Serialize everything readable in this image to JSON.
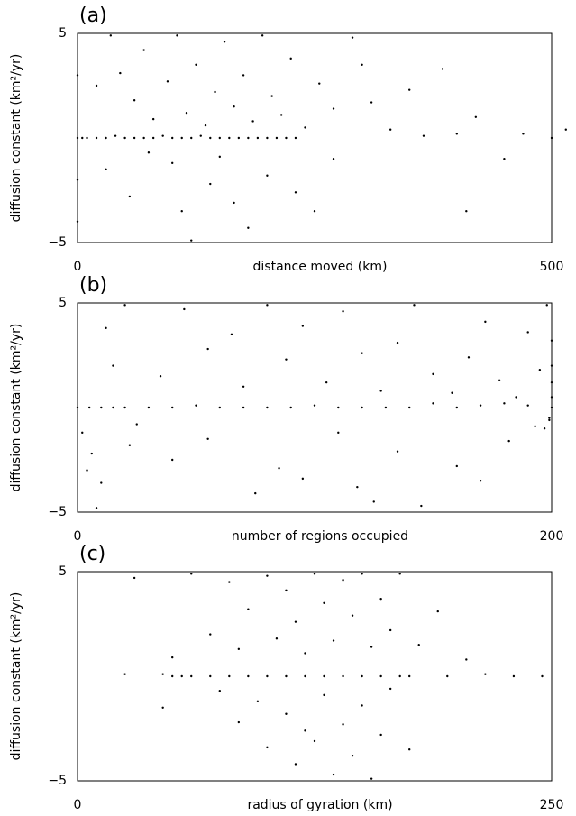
{
  "chart_data": [
    {
      "type": "scatter",
      "label": "(a)",
      "x_label": "distance moved (km)",
      "y_label": "diffusion constant (km²/yr)",
      "color": "#000000",
      "xlim": [
        0,
        500
      ],
      "xticks": [
        0,
        500
      ],
      "ylim": [
        -5,
        5
      ],
      "yticks": [
        {
          "value": -5,
          "label": "−5"
        },
        5
      ],
      "x": [
        0,
        5,
        10,
        20,
        30,
        40,
        50,
        60,
        70,
        80,
        90,
        100,
        110,
        120,
        130,
        140,
        150,
        160,
        170,
        180,
        190,
        200,
        210,
        220,
        230,
        20,
        35,
        45,
        60,
        70,
        80,
        95,
        105,
        115,
        125,
        135,
        145,
        155,
        165,
        175,
        185,
        195,
        205,
        215,
        225,
        240,
        255,
        270,
        290,
        310,
        330,
        350,
        365,
        385,
        400,
        420,
        450,
        410,
        300,
        30,
        55,
        75,
        100,
        110,
        120,
        140,
        150,
        165,
        180,
        200,
        230,
        250,
        0,
        0,
        0,
        270,
        470,
        500,
        515
      ],
      "y": [
        0,
        0,
        0,
        0,
        0,
        0.1,
        0,
        0,
        0,
        0,
        0.1,
        0,
        0,
        0,
        0.1,
        0,
        0,
        0,
        0,
        0,
        0,
        0,
        0,
        0,
        0,
        2.5,
        4.9,
        3.1,
        1.8,
        4.2,
        0.9,
        2.7,
        4.9,
        1.2,
        3.5,
        0.6,
        2.2,
        4.6,
        1.5,
        3.0,
        0.8,
        4.9,
        2.0,
        1.1,
        3.8,
        0.5,
        2.6,
        1.4,
        4.8,
        1.7,
        0.4,
        2.3,
        0.1,
        3.3,
        0.2,
        1.0,
        -1.0,
        -3.5,
        3.5,
        -1.5,
        -2.8,
        -0.7,
        -1.2,
        -3.5,
        -4.9,
        -2.2,
        -0.9,
        -3.1,
        -4.3,
        -1.8,
        -2.6,
        -3.5,
        -2,
        -4,
        3,
        -1.0,
        0.2,
        0,
        0.4
      ]
    },
    {
      "type": "scatter",
      "label": "(b)",
      "x_label": "number of regions occupied",
      "y_label": "diffusion constant (km²/yr)",
      "color": "#000000",
      "xlim": [
        0,
        200
      ],
      "xticks": [
        0,
        200
      ],
      "ylim": [
        -5,
        5
      ],
      "yticks": [
        {
          "value": -5,
          "label": "−5"
        },
        5
      ],
      "x": [
        0,
        5,
        10,
        15,
        20,
        30,
        40,
        50,
        60,
        70,
        80,
        90,
        100,
        110,
        120,
        130,
        140,
        150,
        160,
        170,
        180,
        190,
        200,
        200,
        200,
        200,
        200,
        12,
        15,
        20,
        22,
        35,
        45,
        55,
        65,
        70,
        80,
        88,
        95,
        105,
        112,
        120,
        128,
        135,
        142,
        150,
        158,
        165,
        172,
        178,
        185,
        190,
        195,
        198,
        2,
        4,
        6,
        8,
        10,
        25,
        40,
        55,
        75,
        85,
        95,
        110,
        118,
        125,
        135,
        145,
        160,
        170,
        182,
        193,
        199,
        199,
        197
      ],
      "y": [
        0,
        0,
        0,
        0,
        0,
        0,
        0,
        0.1,
        0,
        0,
        0,
        0,
        0.1,
        0,
        0,
        0,
        0,
        0.2,
        0,
        0.1,
        0.2,
        0.1,
        0,
        0.5,
        1.2,
        2.0,
        3.2,
        3.8,
        2.0,
        4.9,
        -1.8,
        1.5,
        4.7,
        2.8,
        3.5,
        1.0,
        4.9,
        2.3,
        3.9,
        1.2,
        4.6,
        2.6,
        0.8,
        3.1,
        4.9,
        1.6,
        0.7,
        2.4,
        4.1,
        1.3,
        0.5,
        3.6,
        1.8,
        4.9,
        -1.2,
        -3.0,
        -2.2,
        -4.8,
        -3.6,
        -0.8,
        -2.5,
        -1.5,
        -4.1,
        -2.9,
        -3.4,
        -1.2,
        -3.8,
        -4.5,
        -2.1,
        -4.7,
        -2.8,
        -3.5,
        -1.6,
        -0.9,
        -0.5,
        -0.6,
        -1.0
      ]
    },
    {
      "type": "scatter",
      "label": "(c)",
      "x_label": "radius of gyration (km)",
      "y_label": "diffusion constant (km²/yr)",
      "color": "#000000",
      "xlim": [
        0,
        250
      ],
      "xticks": [
        0,
        250
      ],
      "ylim": [
        -5,
        5
      ],
      "yticks": [
        {
          "value": -5,
          "label": "−5"
        },
        5
      ],
      "x": [
        25,
        45,
        50,
        55,
        60,
        70,
        80,
        90,
        100,
        110,
        120,
        130,
        140,
        150,
        160,
        170,
        175,
        195,
        215,
        230,
        245,
        50,
        60,
        70,
        80,
        85,
        90,
        100,
        105,
        110,
        115,
        120,
        125,
        130,
        135,
        140,
        145,
        150,
        155,
        160,
        165,
        170,
        180,
        190,
        205,
        45,
        75,
        85,
        95,
        100,
        110,
        115,
        120,
        125,
        130,
        135,
        140,
        145,
        150,
        155,
        160,
        165,
        175,
        30
      ],
      "y": [
        0.1,
        0.1,
        0,
        0,
        0,
        0,
        0,
        0,
        0,
        0,
        0,
        0,
        0,
        0,
        0,
        0,
        0,
        0,
        0.1,
        0,
        0,
        0.9,
        4.9,
        2.0,
        4.5,
        1.3,
        3.2,
        4.8,
        1.8,
        4.1,
        2.6,
        1.1,
        4.9,
        3.5,
        1.7,
        4.6,
        2.9,
        4.9,
        1.4,
        3.7,
        2.2,
        4.9,
        1.5,
        3.1,
        0.8,
        -1.5,
        -0.7,
        -2.2,
        -1.2,
        -3.4,
        -1.8,
        -4.2,
        -2.6,
        -3.1,
        -0.9,
        -4.7,
        -2.3,
        -3.8,
        -1.4,
        -4.9,
        -2.8,
        -0.6,
        -3.5,
        4.7
      ]
    }
  ]
}
